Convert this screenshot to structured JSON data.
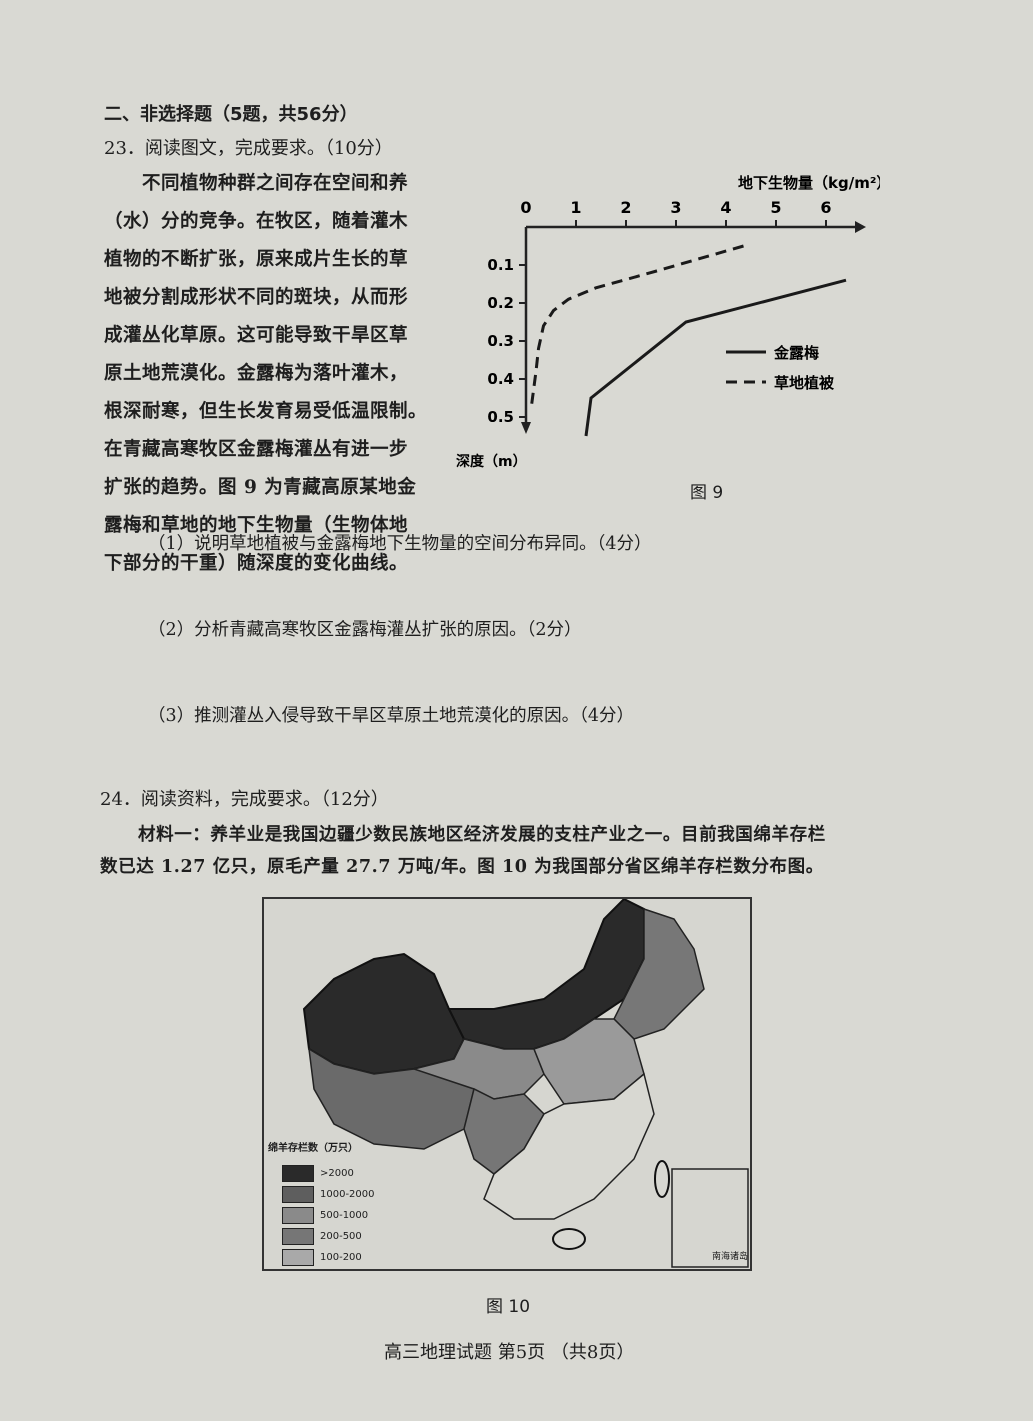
{
  "section_title": "二、非选择题（5题，共56分）",
  "q23": {
    "title": "23．阅读图文，完成要求。（10分）",
    "paragraph_lines": [
      "不同植物种群之间存在空间和养",
      "（水）分的竞争。在牧区，随着灌木",
      "植物的不断扩张，原来成片生长的草",
      "地被分割成形状不同的斑块，从而形",
      "成灌丛化草原。这可能导致干旱区草",
      "原土地荒漠化。金露梅为落叶灌木，",
      "根深耐寒，但生长发育易受低温限制。",
      "在青藏高寒牧区金露梅灌丛有进一步",
      "扩张的趋势。图 9 为青藏高原某地金",
      "露梅和草地的地下生物量（生物体地",
      "下部分的干重）随深度的变化曲线。"
    ],
    "figure_caption": "图 9",
    "sub_questions": [
      "（1）说明草地植被与金露梅地下生物量的空间分布异同。（4分）",
      "（2）分析青藏高寒牧区金露梅灌丛扩张的原因。（2分）",
      "（3）推测灌丛入侵导致干旱区草原土地荒漠化的原因。（4分）"
    ]
  },
  "chart_data": {
    "type": "line",
    "title": "",
    "xlabel": "地下生物量（kg/m²）",
    "ylabel": "深度（m）",
    "xlim": [
      0,
      6.5
    ],
    "ylim": [
      0,
      0.55
    ],
    "x_ticks": [
      "0",
      "1",
      "2",
      "3",
      "4",
      "5",
      "6"
    ],
    "y_ticks": [
      "0.1",
      "0.2",
      "0.3",
      "0.4",
      "0.5"
    ],
    "y_inverted": true,
    "grid": false,
    "legend_position": "right",
    "series": [
      {
        "name": "金露梅",
        "style": "solid",
        "points": [
          [
            6.4,
            0.14
          ],
          [
            3.2,
            0.25
          ],
          [
            1.3,
            0.45
          ],
          [
            1.2,
            0.55
          ]
        ]
      },
      {
        "name": "草地植被",
        "style": "dashed",
        "points": [
          [
            4.35,
            0.05
          ],
          [
            2.5,
            0.12
          ],
          [
            1.4,
            0.16
          ],
          [
            0.85,
            0.19
          ],
          [
            0.55,
            0.22
          ],
          [
            0.35,
            0.26
          ],
          [
            0.25,
            0.32
          ],
          [
            0.2,
            0.38
          ],
          [
            0.1,
            0.48
          ]
        ]
      }
    ]
  },
  "q24": {
    "title": "24．阅读资料，完成要求。（12分）",
    "material_lines": [
      "材料一：养羊业是我国边疆少数民族地区经济发展的支柱产业之一。目前我国绵羊存栏",
      "数已达 1.27 亿只，原毛产量 27.7 万吨/年。图 10 为我国部分省区绵羊存栏数分布图。"
    ],
    "map": {
      "legend_title": "绵羊存栏数（万只）",
      "legend": [
        {
          "label": ">2000",
          "color": "#2a2a2a"
        },
        {
          "label": "1000-2000",
          "color": "#5e5e5e"
        },
        {
          "label": "500-1000",
          "color": "#8a8a8a"
        },
        {
          "label": "200-500",
          "color": "#767676"
        },
        {
          "label": "100-200",
          "color": "#a9a9a9"
        }
      ],
      "inset_label": "南海诸岛"
    },
    "figure_caption": "图 10"
  },
  "footer": "高三地理试题  第5页  （共8页）"
}
